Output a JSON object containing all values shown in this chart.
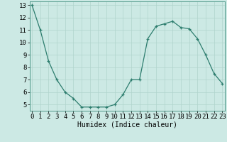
{
  "x": [
    0,
    1,
    2,
    3,
    4,
    5,
    6,
    7,
    8,
    9,
    10,
    11,
    12,
    13,
    14,
    15,
    16,
    17,
    18,
    19,
    20,
    21,
    22,
    23
  ],
  "y": [
    13.0,
    11.0,
    8.5,
    7.0,
    6.0,
    5.5,
    4.8,
    4.8,
    4.8,
    4.8,
    5.0,
    5.8,
    7.0,
    7.0,
    10.3,
    11.3,
    11.5,
    11.7,
    11.2,
    11.1,
    10.3,
    9.0,
    7.5,
    6.7
  ],
  "xlabel": "Humidex (Indice chaleur)",
  "ylim_min": 4.5,
  "ylim_max": 13.3,
  "xlim_min": -0.3,
  "xlim_max": 23.3,
  "yticks": [
    5,
    6,
    7,
    8,
    9,
    10,
    11,
    12,
    13
  ],
  "xticks": [
    0,
    1,
    2,
    3,
    4,
    5,
    6,
    7,
    8,
    9,
    10,
    11,
    12,
    13,
    14,
    15,
    16,
    17,
    18,
    19,
    20,
    21,
    22,
    23
  ],
  "line_color": "#2d7d6e",
  "marker_color": "#2d7d6e",
  "bg_color": "#cce9e4",
  "grid_color": "#b0d4cc",
  "xlabel_fontsize": 7,
  "tick_fontsize": 6.5
}
